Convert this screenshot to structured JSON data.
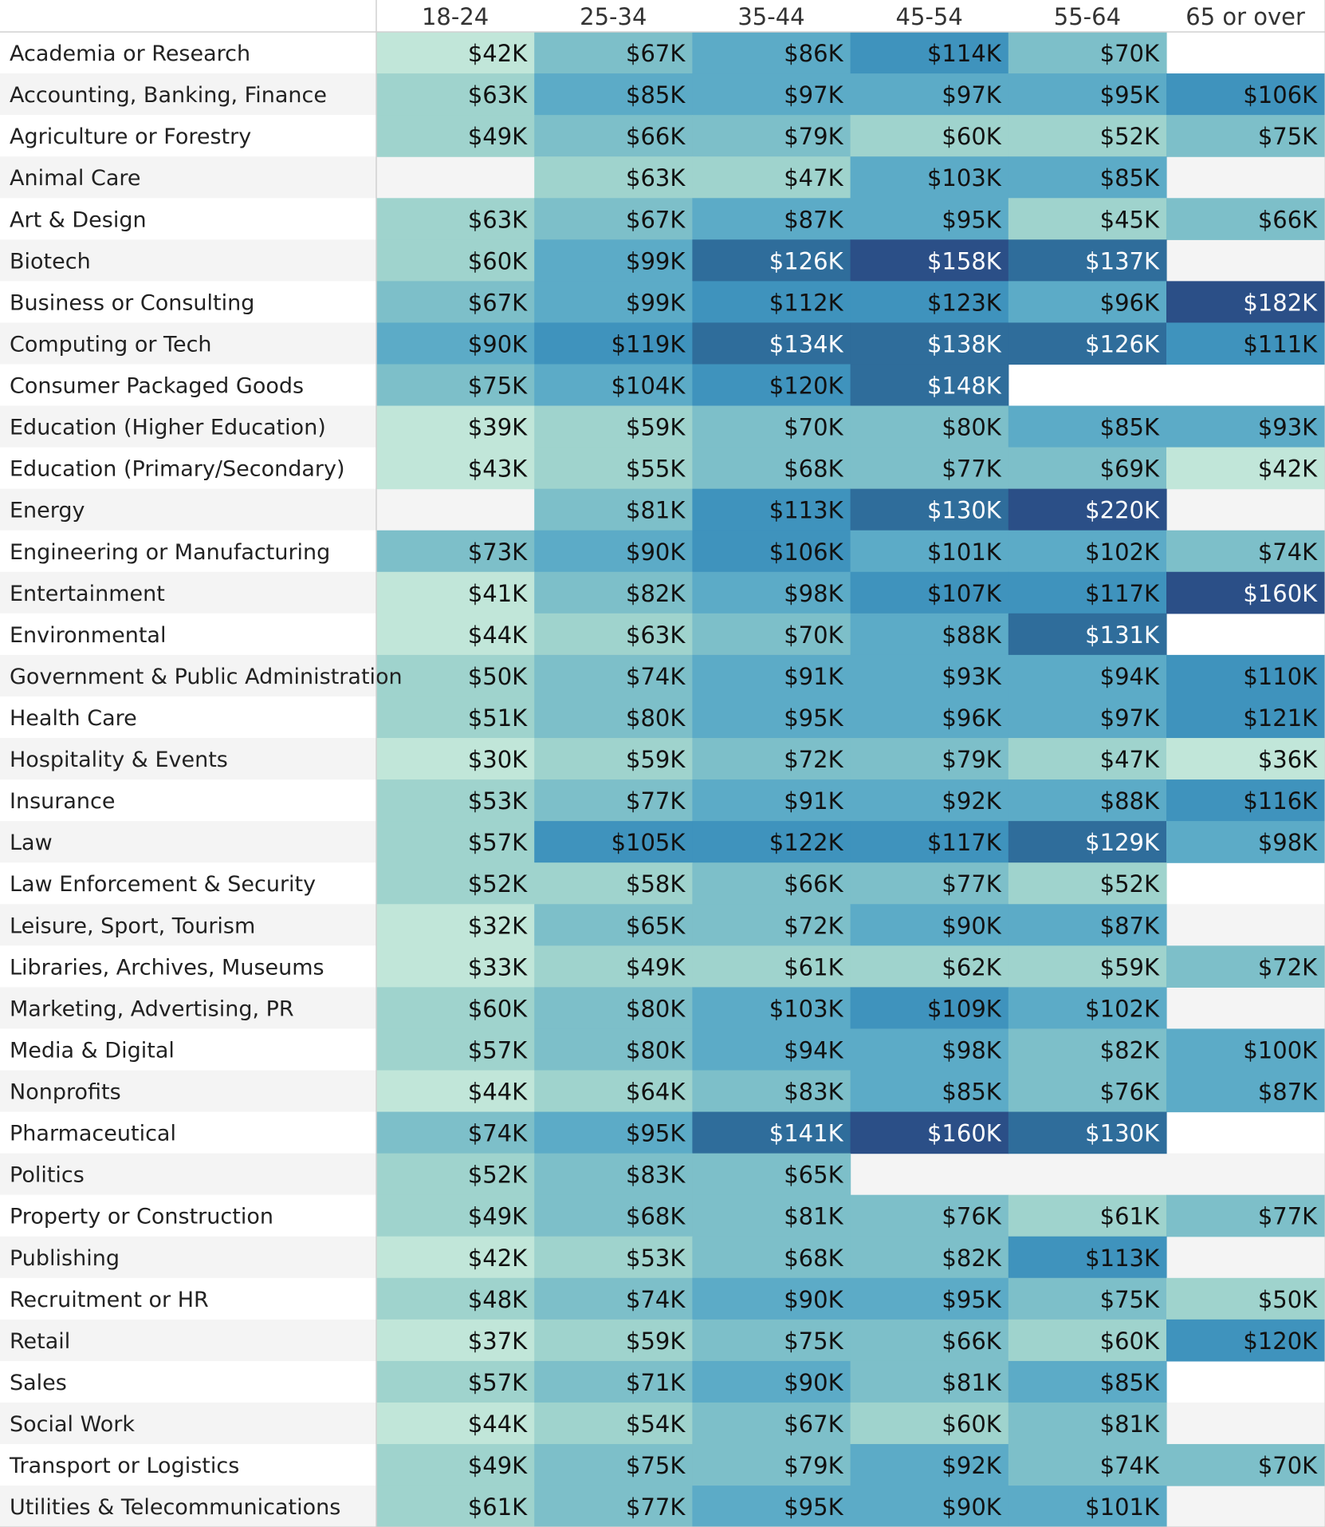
{
  "chart_data": {
    "type": "heatmap",
    "title": "",
    "xlabel": "",
    "ylabel": "",
    "value_format": "$%K",
    "columns": [
      "18-24",
      "25-34",
      "35-44",
      "45-54",
      "55-64",
      "65 or over"
    ],
    "rows": [
      "Academia or Research",
      "Accounting, Banking, Finance",
      "Agriculture or Forestry",
      "Animal Care",
      "Art & Design",
      "Biotech",
      "Business or Consulting",
      "Computing or Tech",
      "Consumer Packaged Goods",
      "Education (Higher Education)",
      "Education (Primary/Secondary)",
      "Energy",
      "Engineering or Manufacturing",
      "Entertainment",
      "Environmental",
      "Government & Public Administration",
      "Health Care",
      "Hospitality & Events",
      "Insurance",
      "Law",
      "Law Enforcement & Security",
      "Leisure, Sport, Tourism",
      "Libraries, Archives, Museums",
      "Marketing, Advertising, PR",
      "Media & Digital",
      "Nonprofits",
      "Pharmaceutical",
      "Politics",
      "Property or Construction",
      "Publishing",
      "Recruitment or HR",
      "Retail",
      "Sales",
      "Social Work",
      "Transport or Logistics",
      "Utilities & Telecommunications"
    ],
    "values": [
      [
        42,
        67,
        86,
        114,
        70,
        null
      ],
      [
        63,
        85,
        97,
        97,
        95,
        106
      ],
      [
        49,
        66,
        79,
        60,
        52,
        75
      ],
      [
        null,
        63,
        47,
        103,
        85,
        null
      ],
      [
        63,
        67,
        87,
        95,
        45,
        66
      ],
      [
        60,
        99,
        126,
        158,
        137,
        null
      ],
      [
        67,
        99,
        112,
        123,
        96,
        182
      ],
      [
        90,
        119,
        134,
        138,
        126,
        111
      ],
      [
        75,
        104,
        120,
        148,
        null,
        null
      ],
      [
        39,
        59,
        70,
        80,
        85,
        93
      ],
      [
        43,
        55,
        68,
        77,
        69,
        42
      ],
      [
        null,
        81,
        113,
        130,
        220,
        null
      ],
      [
        73,
        90,
        106,
        101,
        102,
        74
      ],
      [
        41,
        82,
        98,
        107,
        117,
        160
      ],
      [
        44,
        63,
        70,
        88,
        131,
        null
      ],
      [
        50,
        74,
        91,
        93,
        94,
        110
      ],
      [
        51,
        80,
        95,
        96,
        97,
        121
      ],
      [
        30,
        59,
        72,
        79,
        47,
        36
      ],
      [
        53,
        77,
        91,
        92,
        88,
        116
      ],
      [
        57,
        105,
        122,
        117,
        129,
        98
      ],
      [
        52,
        58,
        66,
        77,
        52,
        null
      ],
      [
        32,
        65,
        72,
        90,
        87,
        null
      ],
      [
        33,
        49,
        61,
        62,
        59,
        72
      ],
      [
        60,
        80,
        103,
        109,
        102,
        null
      ],
      [
        57,
        80,
        94,
        98,
        82,
        100
      ],
      [
        44,
        64,
        83,
        85,
        76,
        87
      ],
      [
        74,
        95,
        141,
        160,
        130,
        null
      ],
      [
        52,
        83,
        65,
        null,
        null,
        null
      ],
      [
        49,
        68,
        81,
        76,
        61,
        77
      ],
      [
        42,
        53,
        68,
        82,
        113,
        null
      ],
      [
        48,
        74,
        90,
        95,
        75,
        50
      ],
      [
        37,
        59,
        75,
        66,
        60,
        120
      ],
      [
        57,
        71,
        90,
        81,
        85,
        null
      ],
      [
        44,
        54,
        67,
        60,
        81,
        null
      ],
      [
        49,
        75,
        79,
        92,
        74,
        70
      ],
      [
        61,
        77,
        95,
        90,
        101,
        null
      ]
    ],
    "color_scale": [
      "#c1e6d9",
      "#9fd3cd",
      "#7dbfc9",
      "#5cabc7",
      "#3f93bd",
      "#2f6d9b",
      "#2b4f87"
    ],
    "stripe_color": "#f4f4f4",
    "grid": false,
    "legend": "none"
  }
}
